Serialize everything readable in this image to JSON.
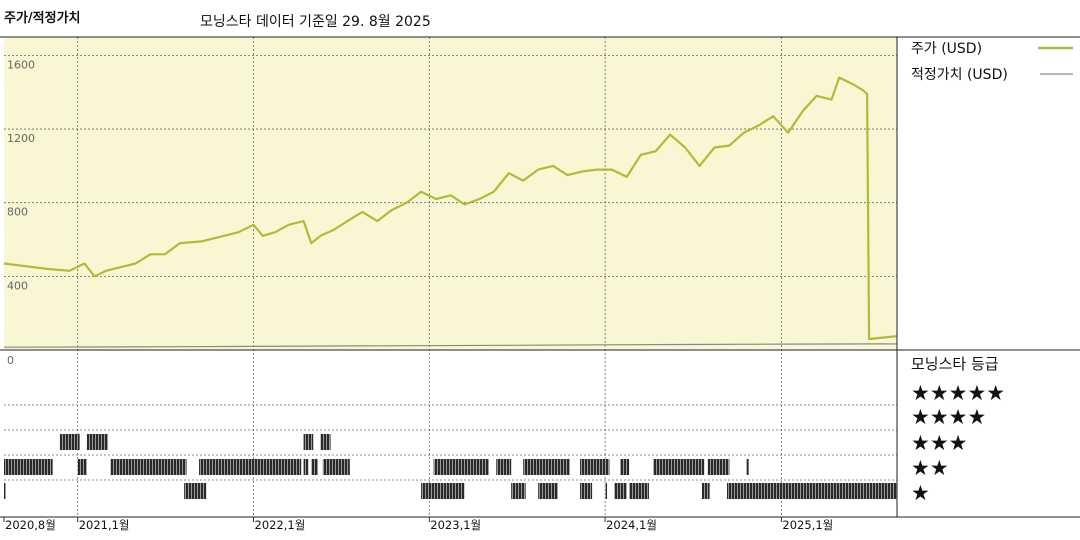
{
  "header": {
    "title": "주가/적정가치",
    "subtitle": "모닝스타 데이터 기준일 29. 8월 2025"
  },
  "rating_panel": {
    "title": "모닝스타 등급",
    "levels": [
      "★★★★★",
      "★★★★",
      "★★★",
      "★★",
      "★"
    ]
  },
  "chart_data": {
    "type": "line",
    "x_start": "2020-08-01",
    "x_end": "2025-08-29",
    "x_ticks": [
      {
        "date": "2020-08-01",
        "label": "2020,8월"
      },
      {
        "date": "2021-01-01",
        "label": "2021,1월"
      },
      {
        "date": "2022-01-01",
        "label": "2022,1월"
      },
      {
        "date": "2023-01-01",
        "label": "2023,1월"
      },
      {
        "date": "2024-01-01",
        "label": "2024,1월"
      },
      {
        "date": "2025-01-01",
        "label": "2025,1월"
      }
    ],
    "ylim": [
      0,
      1700
    ],
    "y_ticks": [
      400,
      800,
      1200,
      1600
    ],
    "grid": true,
    "legend_position": "right",
    "series": [
      {
        "name": "주가 (USD)",
        "color": "#b5b936",
        "points": [
          [
            "2020-08-01",
            470
          ],
          [
            "2020-09-15",
            455
          ],
          [
            "2020-11-01",
            440
          ],
          [
            "2020-12-15",
            430
          ],
          [
            "2021-01-15",
            470
          ],
          [
            "2021-02-05",
            400
          ],
          [
            "2021-03-01",
            430
          ],
          [
            "2021-04-01",
            450
          ],
          [
            "2021-05-01",
            470
          ],
          [
            "2021-06-01",
            520
          ],
          [
            "2021-07-01",
            520
          ],
          [
            "2021-08-01",
            580
          ],
          [
            "2021-09-15",
            590
          ],
          [
            "2021-11-01",
            620
          ],
          [
            "2021-12-01",
            640
          ],
          [
            "2022-01-01",
            680
          ],
          [
            "2022-01-20",
            620
          ],
          [
            "2022-02-15",
            640
          ],
          [
            "2022-03-15",
            680
          ],
          [
            "2022-04-15",
            700
          ],
          [
            "2022-05-01",
            580
          ],
          [
            "2022-05-20",
            620
          ],
          [
            "2022-06-15",
            650
          ],
          [
            "2022-07-15",
            700
          ],
          [
            "2022-08-15",
            750
          ],
          [
            "2022-09-15",
            700
          ],
          [
            "2022-10-15",
            760
          ],
          [
            "2022-11-15",
            800
          ],
          [
            "2022-12-15",
            860
          ],
          [
            "2023-01-15",
            820
          ],
          [
            "2023-02-15",
            840
          ],
          [
            "2023-03-15",
            790
          ],
          [
            "2023-04-15",
            820
          ],
          [
            "2023-05-15",
            860
          ],
          [
            "2023-06-15",
            960
          ],
          [
            "2023-07-15",
            920
          ],
          [
            "2023-08-15",
            980
          ],
          [
            "2023-09-15",
            1000
          ],
          [
            "2023-10-15",
            950
          ],
          [
            "2023-11-15",
            970
          ],
          [
            "2023-12-15",
            980
          ],
          [
            "2024-01-15",
            980
          ],
          [
            "2024-02-15",
            940
          ],
          [
            "2024-03-15",
            1060
          ],
          [
            "2024-04-15",
            1080
          ],
          [
            "2024-05-15",
            1170
          ],
          [
            "2024-06-15",
            1100
          ],
          [
            "2024-07-15",
            1000
          ],
          [
            "2024-08-15",
            1100
          ],
          [
            "2024-09-15",
            1110
          ],
          [
            "2024-10-15",
            1180
          ],
          [
            "2024-11-15",
            1220
          ],
          [
            "2024-12-15",
            1270
          ],
          [
            "2025-01-15",
            1180
          ],
          [
            "2025-02-15",
            1300
          ],
          [
            "2025-03-15",
            1380
          ],
          [
            "2025-04-15",
            1360
          ],
          [
            "2025-05-01",
            1480
          ],
          [
            "2025-06-01",
            1440
          ],
          [
            "2025-06-20",
            1410
          ],
          [
            "2025-06-28",
            1390
          ],
          [
            "2025-07-02",
            60
          ],
          [
            "2025-08-29",
            75
          ]
        ]
      },
      {
        "name": "적정가치 (USD)",
        "color": "#888888",
        "points": [
          [
            "2020-08-01",
            15
          ],
          [
            "2021-08-01",
            18
          ],
          [
            "2022-08-01",
            22
          ],
          [
            "2023-08-01",
            26
          ],
          [
            "2024-01-01",
            28
          ],
          [
            "2024-06-01",
            30
          ],
          [
            "2025-01-01",
            32
          ],
          [
            "2025-08-29",
            33
          ]
        ]
      }
    ],
    "star_rating_bands": [
      {
        "stars": 3,
        "segments": [
          [
            "2020-11-25",
            "2021-01-05"
          ],
          [
            "2021-01-20",
            "2021-03-05"
          ],
          [
            "2022-04-15",
            "2022-05-05"
          ],
          [
            "2022-05-20",
            "2022-06-10"
          ]
        ]
      },
      {
        "stars": 2,
        "segments": [
          [
            "2020-08-01",
            "2020-11-10"
          ],
          [
            "2021-01-01",
            "2021-01-20"
          ],
          [
            "2021-03-10",
            "2021-08-15"
          ],
          [
            "2021-09-10",
            "2022-04-10"
          ],
          [
            "2022-04-15",
            "2022-04-25"
          ],
          [
            "2022-05-01",
            "2022-05-15"
          ],
          [
            "2022-05-25",
            "2022-07-20"
          ],
          [
            "2023-01-10",
            "2023-05-05"
          ],
          [
            "2023-05-20",
            "2023-06-20"
          ],
          [
            "2023-07-15",
            "2023-10-20"
          ],
          [
            "2023-11-10",
            "2024-01-10"
          ],
          [
            "2024-02-01",
            "2024-02-20"
          ],
          [
            "2024-04-10",
            "2024-07-25"
          ],
          [
            "2024-08-01",
            "2024-09-15"
          ],
          [
            "2024-10-20",
            "2024-10-25"
          ]
        ]
      },
      {
        "stars": 1,
        "segments": [
          [
            "2020-08-01",
            "2020-08-05"
          ],
          [
            "2021-08-10",
            "2021-09-25"
          ],
          [
            "2022-12-15",
            "2023-03-15"
          ],
          [
            "2023-06-20",
            "2023-07-20"
          ],
          [
            "2023-08-15",
            "2023-09-25"
          ],
          [
            "2023-11-10",
            "2023-12-05"
          ],
          [
            "2024-01-01",
            "2024-01-05"
          ],
          [
            "2024-01-20",
            "2024-02-15"
          ],
          [
            "2024-02-20",
            "2024-04-01"
          ],
          [
            "2024-07-20",
            "2024-08-05"
          ],
          [
            "2024-09-10",
            "2025-08-29"
          ]
        ]
      }
    ]
  }
}
